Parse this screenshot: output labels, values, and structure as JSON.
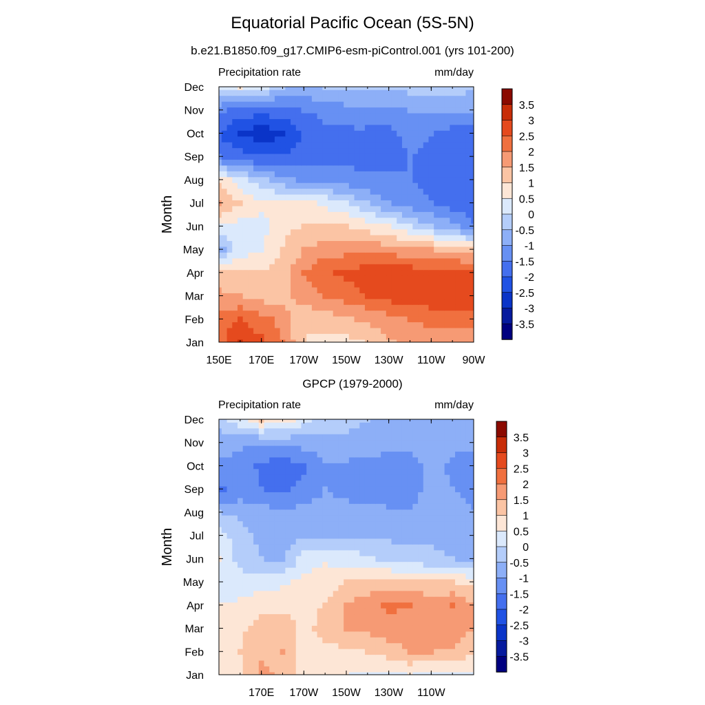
{
  "main_title": "Equatorial Pacific Ocean (5S-5N)",
  "chart_data": [
    {
      "type": "heatmap",
      "title": "b.e21.B1850.f09_g17.CMIP6-esm-piControl.001 (yrs 101-200)",
      "left_label": "Precipitation rate",
      "units_label": "mm/day",
      "ylabel": "Month",
      "y_categories": [
        "Jan",
        "Feb",
        "Mar",
        "Apr",
        "May",
        "Jun",
        "Jul",
        "Aug",
        "Sep",
        "Oct",
        "Nov",
        "Dec"
      ],
      "x_ticks": [
        "150E",
        "170E",
        "170W",
        "150W",
        "130W",
        "110W",
        "90W"
      ],
      "x_values": [
        150,
        170,
        190,
        210,
        230,
        250,
        270
      ],
      "xlim": [
        150,
        270
      ],
      "colorbar_ticks": [
        "3.5",
        "3",
        "2.5",
        "2",
        "1.5",
        "1",
        "0.5",
        "0",
        "-0.5",
        "-1",
        "-1.5",
        "-2",
        "-2.5",
        "-3",
        "-3.5"
      ],
      "z": [
        [
          2.3,
          3.0,
          2.6,
          2.0,
          1.0,
          0.8,
          0.8,
          1.0,
          1.4,
          1.6,
          1.6,
          1.6,
          1.6
        ],
        [
          2.2,
          2.5,
          2.2,
          1.8,
          1.0,
          1.2,
          1.4,
          1.6,
          1.8,
          2.0,
          2.2,
          2.2,
          2.2
        ],
        [
          1.6,
          1.5,
          1.3,
          1.2,
          1.8,
          2.0,
          2.2,
          2.5,
          2.7,
          2.8,
          2.8,
          2.8,
          2.9
        ],
        [
          1.3,
          1.0,
          1.0,
          1.2,
          2.0,
          2.4,
          2.6,
          2.8,
          2.8,
          2.8,
          2.7,
          2.7,
          2.6
        ],
        [
          -0.8,
          0.3,
          0.4,
          1.0,
          1.5,
          1.8,
          1.8,
          1.8,
          1.8,
          1.6,
          1.5,
          1.4,
          1.2
        ],
        [
          0.4,
          0.3,
          0.3,
          0.9,
          1.0,
          1.0,
          1.0,
          0.8,
          0.5,
          0.0,
          -0.5,
          -0.8,
          -1.5
        ],
        [
          1.6,
          1.0,
          0.6,
          0.6,
          0.6,
          0.4,
          0.0,
          -0.5,
          -1.0,
          -1.3,
          -1.5,
          -1.8,
          -1.9
        ],
        [
          0.8,
          0.2,
          -0.3,
          -0.8,
          -1.1,
          -1.2,
          -1.3,
          -1.4,
          -1.4,
          -1.5,
          -1.6,
          -1.8,
          -1.9
        ],
        [
          -1.5,
          -1.8,
          -2.0,
          -2.0,
          -1.8,
          -1.6,
          -1.6,
          -1.7,
          -1.8,
          -1.5,
          -1.6,
          -1.8,
          -1.9
        ],
        [
          -2.0,
          -2.6,
          -2.8,
          -2.6,
          -2.0,
          -1.7,
          -1.6,
          -1.6,
          -1.7,
          -1.3,
          -1.5,
          -1.7,
          -1.7
        ],
        [
          -1.4,
          -1.7,
          -1.8,
          -1.7,
          -1.5,
          -1.3,
          -1.2,
          -1.2,
          -1.1,
          -1.0,
          -1.0,
          -1.0,
          -1.0
        ],
        [
          0.3,
          0.5,
          0.2,
          -0.5,
          -0.6,
          -0.5,
          -0.3,
          -0.4,
          -0.5,
          -0.3,
          -0.1,
          -0.2,
          -0.4
        ]
      ]
    },
    {
      "type": "heatmap",
      "title": "GPCP (1979-2000)",
      "left_label": "Precipitation rate",
      "units_label": "mm/day",
      "ylabel": "Month",
      "y_categories": [
        "Jan",
        "Feb",
        "Mar",
        "Apr",
        "May",
        "Jun",
        "Jul",
        "Aug",
        "Sep",
        "Oct",
        "Nov",
        "Dec"
      ],
      "x_ticks": [
        "170E",
        "170W",
        "150W",
        "130W",
        "110W"
      ],
      "x_values": [
        170,
        190,
        210,
        230,
        250
      ],
      "xlim": [
        150,
        270
      ],
      "colorbar_ticks": [
        "3.5",
        "3",
        "2.5",
        "2",
        "1.5",
        "1",
        "0.5",
        "0",
        "-0.5",
        "-1",
        "-1.5",
        "-2",
        "-2.5",
        "-3",
        "-3.5"
      ],
      "z": [
        [
          0.5,
          0.8,
          1.6,
          1.4,
          0.6,
          0.5,
          0.5,
          0.4,
          0.4,
          0.5,
          0.4,
          0.4,
          0.3
        ],
        [
          0.6,
          1.0,
          1.4,
          1.5,
          0.6,
          0.8,
          0.9,
          1.0,
          1.2,
          1.5,
          1.5,
          1.4,
          1.1
        ],
        [
          0.6,
          0.9,
          1.2,
          1.3,
          0.8,
          1.2,
          1.5,
          1.6,
          1.8,
          1.8,
          1.8,
          1.8,
          1.5
        ],
        [
          0.5,
          0.6,
          0.8,
          0.8,
          0.9,
          1.0,
          1.5,
          1.8,
          2.1,
          2.0,
          1.9,
          2.0,
          1.6
        ],
        [
          0.0,
          0.2,
          0.3,
          0.4,
          0.6,
          0.8,
          1.0,
          1.1,
          1.2,
          1.1,
          1.0,
          1.0,
          0.8
        ],
        [
          0.5,
          -0.2,
          -0.5,
          -0.6,
          0.2,
          0.4,
          0.3,
          0.1,
          -0.2,
          -0.3,
          -0.4,
          -0.5,
          -0.6
        ],
        [
          0.3,
          -0.4,
          -0.6,
          -0.7,
          -0.6,
          -0.6,
          -0.6,
          -0.6,
          -0.6,
          -0.6,
          -0.6,
          -0.6,
          -0.6
        ],
        [
          -0.5,
          -0.6,
          -0.8,
          -0.9,
          -0.8,
          -0.8,
          -0.8,
          -0.7,
          -0.9,
          -1.0,
          -0.7,
          -0.9,
          -1.0
        ],
        [
          -1.6,
          -1.4,
          -1.5,
          -1.6,
          -1.4,
          -1.0,
          -1.2,
          -1.4,
          -1.4,
          -1.3,
          -0.8,
          -1.0,
          -1.1
        ],
        [
          -1.1,
          -1.2,
          -1.6,
          -1.8,
          -1.6,
          -1.1,
          -1.1,
          -1.3,
          -1.4,
          -1.3,
          -0.8,
          -1.1,
          -1.2
        ],
        [
          -0.8,
          -0.9,
          -1.0,
          -0.9,
          -0.8,
          -0.7,
          -0.6,
          -0.6,
          -0.7,
          -0.8,
          -0.8,
          -0.9,
          -0.9
        ],
        [
          -0.3,
          0.3,
          1.0,
          0.8,
          0.2,
          -0.3,
          -0.4,
          -0.5,
          -0.6,
          -0.7,
          -0.7,
          -0.7,
          -0.6
        ]
      ]
    }
  ]
}
